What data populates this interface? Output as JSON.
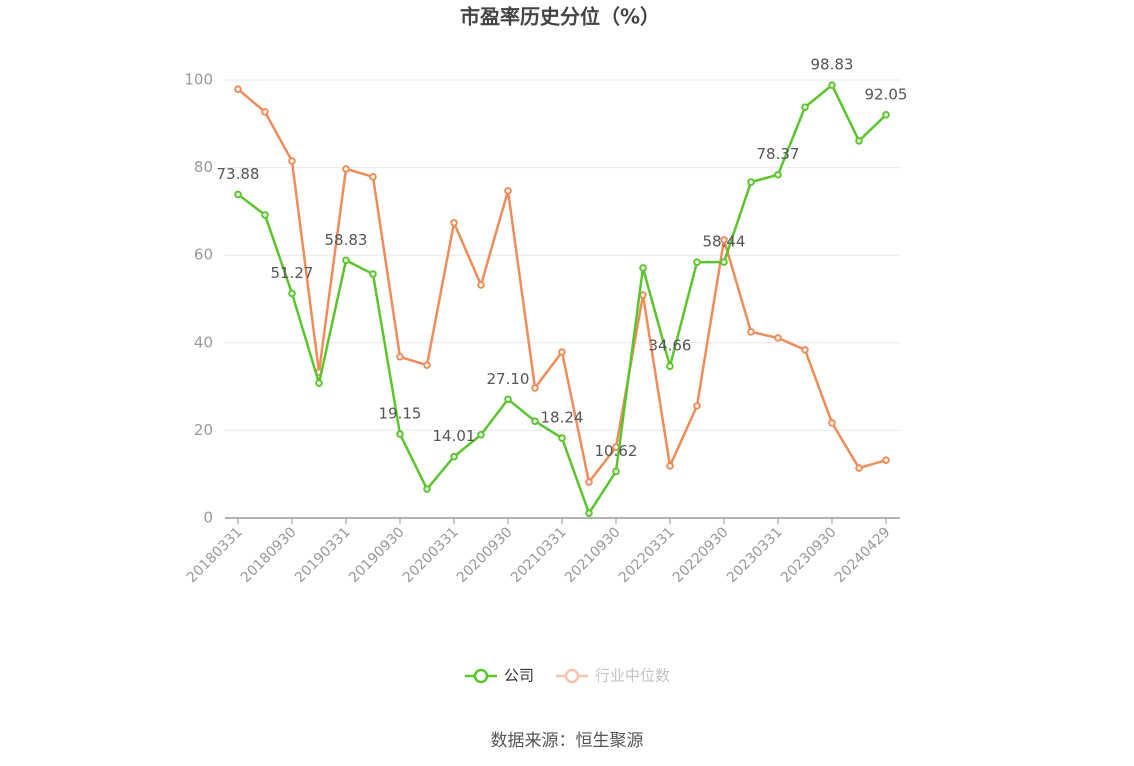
{
  "chart_data": {
    "type": "line",
    "title": "市盈率历史分位（%）",
    "source": "数据来源：恒生聚源",
    "categories": [
      "20180331",
      null,
      "20180930",
      null,
      "20190331",
      null,
      "20190930",
      null,
      "20200331",
      null,
      "20200930",
      null,
      "20210331",
      null,
      "20210930",
      null,
      "20220331",
      null,
      "20220930",
      null,
      "20230331",
      null,
      "20230930",
      null,
      "20240429"
    ],
    "series": [
      {
        "name": "公司",
        "color": "#5ac52c",
        "values": [
          73.88,
          69.2,
          51.27,
          30.8,
          58.83,
          55.7,
          19.15,
          6.6,
          14.01,
          19.0,
          27.1,
          22.1,
          18.24,
          1.1,
          10.62,
          57.1,
          34.66,
          58.4,
          58.44,
          76.7,
          78.37,
          93.8,
          98.83,
          86.1,
          92.05
        ],
        "value_labels": [
          "73.88",
          null,
          "51.27",
          null,
          "58.83",
          null,
          "19.15",
          null,
          "14.01",
          null,
          "27.10",
          null,
          "18.24",
          null,
          "10.62",
          null,
          "34.66",
          null,
          "58.44",
          null,
          "78.37",
          null,
          "98.83",
          null,
          "92.05"
        ]
      },
      {
        "name": "行业中位数",
        "color": "#f08c5a",
        "values": [
          97.9,
          92.7,
          81.5,
          33.3,
          79.7,
          77.9,
          36.8,
          34.9,
          67.4,
          53.2,
          74.7,
          29.7,
          37.9,
          8.2,
          16.2,
          50.9,
          11.9,
          25.6,
          63.5,
          42.5,
          41.1,
          38.4,
          21.7,
          11.4,
          13.2
        ]
      }
    ],
    "ylim": [
      0,
      100
    ],
    "yticks": [
      0,
      20,
      40,
      60,
      80,
      100
    ],
    "grid": true
  }
}
